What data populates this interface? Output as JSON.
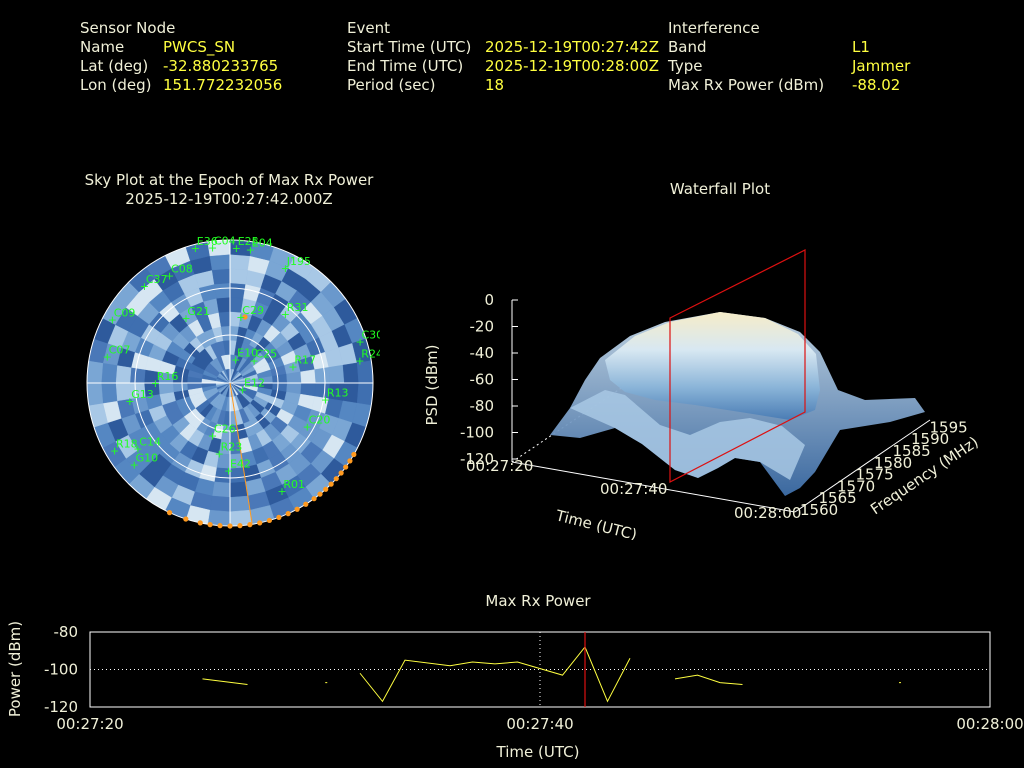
{
  "header": {
    "sensor": {
      "title": "Sensor Node",
      "name_label": "Name",
      "name_value": "PWCS_SN",
      "lat_label": "Lat (deg)",
      "lat_value": "-32.880233765",
      "lon_label": "Lon (deg)",
      "lon_value": "151.772232056"
    },
    "event": {
      "title": "Event",
      "start_label": "Start Time (UTC)",
      "start_value": "2025-12-19T00:27:42Z",
      "end_label": "End Time (UTC)",
      "end_value": "2025-12-19T00:28:00Z",
      "period_label": "Period (sec)",
      "period_value": "18"
    },
    "interference": {
      "title": "Interference",
      "band_label": "Band",
      "band_value": "L1",
      "type_label": "Type",
      "type_value": "Jammer",
      "maxrx_label": "Max Rx Power (dBm)",
      "maxrx_value": "-88.02"
    }
  },
  "skyplot": {
    "title": "Sky Plot at the Epoch of Max Rx Power",
    "epoch": "2025-12-19T00:27:42.000Z",
    "satellites": [
      {
        "prn": "E36",
        "az": 345,
        "el": 2
      },
      {
        "prn": "C04",
        "az": 352,
        "el": 4
      },
      {
        "prn": "E25",
        "az": 2,
        "el": 5
      },
      {
        "prn": "E04",
        "az": 8,
        "el": 5
      },
      {
        "prn": "C37",
        "az": 318,
        "el": 8
      },
      {
        "prn": "C08",
        "az": 330,
        "el": 12
      },
      {
        "prn": "J195",
        "az": 25,
        "el": 10
      },
      {
        "prn": "C09",
        "az": 298,
        "el": 5
      },
      {
        "prn": "R31",
        "az": 38,
        "el": 35
      },
      {
        "prn": "C30",
        "az": 72,
        "el": 5
      },
      {
        "prn": "C29",
        "az": 8,
        "el": 48
      },
      {
        "prn": "G21",
        "az": 325,
        "el": 40
      },
      {
        "prn": "E10",
        "az": 10,
        "el": 75
      },
      {
        "prn": "C25",
        "az": 45,
        "el": 70
      },
      {
        "prn": "C07",
        "az": 282,
        "el": 10
      },
      {
        "prn": "R17",
        "az": 75,
        "el": 50
      },
      {
        "prn": "R24",
        "az": 80,
        "el": 8
      },
      {
        "prn": "E12",
        "az": 120,
        "el": 82
      },
      {
        "prn": "R16",
        "az": 270,
        "el": 42
      },
      {
        "prn": "G13",
        "az": 260,
        "el": 25
      },
      {
        "prn": "R13",
        "az": 100,
        "el": 30
      },
      {
        "prn": "C20",
        "az": 120,
        "el": 35
      },
      {
        "prn": "C26",
        "az": 200,
        "el": 55
      },
      {
        "prn": "R18",
        "az": 240,
        "el": 5
      },
      {
        "prn": "C14",
        "az": 235,
        "el": 18
      },
      {
        "prn": "R23",
        "az": 190,
        "el": 45
      },
      {
        "prn": "E42",
        "az": 182,
        "el": 35
      },
      {
        "prn": "R01",
        "az": 155,
        "el": 15
      },
      {
        "prn": "G10",
        "az": 230,
        "el": 10
      }
    ]
  },
  "waterfall": {
    "title": "Waterfall Plot",
    "zlabel": "PSD (dBm)",
    "zticks": [
      "0",
      "-20",
      "-40",
      "-60",
      "-80",
      "-100",
      "-120"
    ],
    "time_label": "Time (UTC)",
    "time_ticks": [
      "00:27:20",
      "00:27:40",
      "00:28:00"
    ],
    "freq_label": "Frequency (MHz)",
    "freq_ticks": [
      "1560",
      "1565",
      "1570",
      "1575",
      "1580",
      "1585",
      "1590",
      "1595"
    ]
  },
  "maxrx": {
    "title": "Max Rx Power",
    "ylabel": "Power (dBm)",
    "xlabel": "Time (UTC)",
    "yticks": [
      "-80",
      "-100",
      "-120"
    ],
    "xticks": [
      "00:27:20",
      "00:27:40",
      "00:28:00"
    ]
  },
  "chart_data": {
    "type": "line",
    "title": "Max Rx Power",
    "xlabel": "Time (UTC)",
    "ylabel": "Power (dBm)",
    "xlim": [
      "00:27:20",
      "00:28:00"
    ],
    "ylim": [
      -120,
      -80
    ],
    "marker_time": "00:27:42",
    "segments": [
      [
        [
          "00:27:25.0",
          -105
        ],
        [
          "00:27:27.0",
          -108
        ]
      ],
      [
        [
          "00:27:30.5",
          -107
        ]
      ],
      [
        [
          "00:27:32.0",
          -102
        ],
        [
          "00:27:33.0",
          -117
        ],
        [
          "00:27:34.0",
          -95
        ],
        [
          "00:27:36.0",
          -98
        ],
        [
          "00:27:37.0",
          -96
        ],
        [
          "00:27:38.0",
          -97
        ],
        [
          "00:27:39.0",
          -96
        ],
        [
          "00:27:41.0",
          -103
        ],
        [
          "00:27:42.0",
          -88
        ],
        [
          "00:27:43.0",
          -117
        ],
        [
          "00:27:44.0",
          -94
        ]
      ],
      [
        [
          "00:27:46.0",
          -105
        ],
        [
          "00:27:47.0",
          -103
        ],
        [
          "00:27:48.0",
          -107
        ],
        [
          "00:27:49.0",
          -108
        ]
      ],
      [
        [
          "00:27:56.0",
          -107
        ]
      ]
    ]
  }
}
